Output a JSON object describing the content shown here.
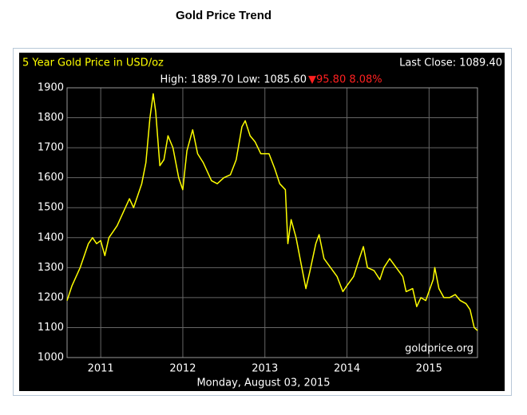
{
  "chart_data": {
    "type": "line",
    "title": "Gold Price Trend",
    "subtitle": "5 Year Gold Price in USD/oz",
    "last_close": "Last Close: 1089.40",
    "high_low": "High: 1889.70 Low: 1085.60",
    "change": "▼95.80 8.08%",
    "watermark": "goldprice.org",
    "date": "Monday, August 03, 2015",
    "x": [
      2010.59,
      2010.65,
      2010.75,
      2010.85,
      2010.9,
      2010.95,
      2011.0,
      2011.05,
      2011.1,
      2011.15,
      2011.2,
      2011.3,
      2011.35,
      2011.4,
      2011.45,
      2011.5,
      2011.55,
      2011.6,
      2011.64,
      2011.67,
      2011.72,
      2011.77,
      2011.82,
      2011.88,
      2011.95,
      2012.0,
      2012.05,
      2012.12,
      2012.18,
      2012.25,
      2012.35,
      2012.42,
      2012.5,
      2012.58,
      2012.65,
      2012.72,
      2012.76,
      2012.82,
      2012.88,
      2012.95,
      2013.05,
      2013.12,
      2013.18,
      2013.25,
      2013.28,
      2013.32,
      2013.38,
      2013.45,
      2013.5,
      2013.55,
      2013.62,
      2013.66,
      2013.72,
      2013.8,
      2013.88,
      2013.95,
      2014.0,
      2014.08,
      2014.15,
      2014.2,
      2014.25,
      2014.33,
      2014.4,
      2014.45,
      2014.52,
      2014.6,
      2014.68,
      2014.72,
      2014.8,
      2014.85,
      2014.9,
      2014.96,
      2015.05,
      2015.07,
      2015.12,
      2015.18,
      2015.25,
      2015.32,
      2015.38,
      2015.45,
      2015.5,
      2015.55,
      2015.59
    ],
    "series": [
      {
        "name": "Gold",
        "color": "#ffff00",
        "values": [
          1190,
          1240,
          1300,
          1380,
          1400,
          1380,
          1390,
          1340,
          1400,
          1420,
          1440,
          1500,
          1530,
          1500,
          1540,
          1580,
          1650,
          1800,
          1880,
          1820,
          1640,
          1660,
          1740,
          1700,
          1600,
          1560,
          1690,
          1760,
          1680,
          1650,
          1590,
          1580,
          1600,
          1610,
          1660,
          1770,
          1790,
          1740,
          1720,
          1680,
          1680,
          1630,
          1580,
          1560,
          1380,
          1460,
          1400,
          1300,
          1230,
          1290,
          1380,
          1410,
          1330,
          1300,
          1270,
          1220,
          1240,
          1270,
          1330,
          1370,
          1300,
          1290,
          1260,
          1300,
          1330,
          1300,
          1270,
          1220,
          1230,
          1170,
          1200,
          1190,
          1260,
          1300,
          1230,
          1200,
          1200,
          1210,
          1190,
          1180,
          1160,
          1100,
          1090
        ]
      }
    ],
    "xlim": [
      2010.59,
      2015.59
    ],
    "xticks": [
      2011,
      2012,
      2013,
      2014,
      2015
    ],
    "ylim": [
      1000,
      1900
    ],
    "yticks": [
      1000,
      1100,
      1200,
      1300,
      1400,
      1500,
      1600,
      1700,
      1800,
      1900
    ],
    "grid": true
  }
}
